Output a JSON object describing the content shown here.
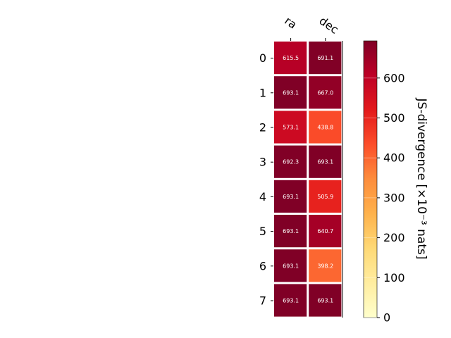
{
  "chart_data": {
    "type": "heatmap",
    "columns": [
      "ra",
      "dec"
    ],
    "rows": [
      "0",
      "1",
      "2",
      "3",
      "4",
      "5",
      "6",
      "7"
    ],
    "values": [
      [
        615.5,
        691.1
      ],
      [
        693.1,
        667.0
      ],
      [
        573.1,
        438.8
      ],
      [
        692.3,
        693.1
      ],
      [
        693.1,
        505.9
      ],
      [
        693.1,
        640.7
      ],
      [
        693.1,
        398.2
      ],
      [
        693.1,
        693.1
      ]
    ],
    "value_labels": [
      [
        "615.5",
        "691.1"
      ],
      [
        "693.1",
        "667.0"
      ],
      [
        "573.1",
        "438.8"
      ],
      [
        "692.3",
        "693.1"
      ],
      [
        "693.1",
        "505.9"
      ],
      [
        "693.1",
        "640.7"
      ],
      [
        "693.1",
        "398.2"
      ],
      [
        "693.1",
        "693.1"
      ]
    ],
    "colorbar": {
      "label": "JS-divergence [×10⁻³ nats]",
      "range": [
        0,
        693.1
      ],
      "ticks": [
        "0",
        "100",
        "200",
        "300",
        "400",
        "500",
        "600"
      ],
      "colormap": "YlOrRd"
    }
  }
}
